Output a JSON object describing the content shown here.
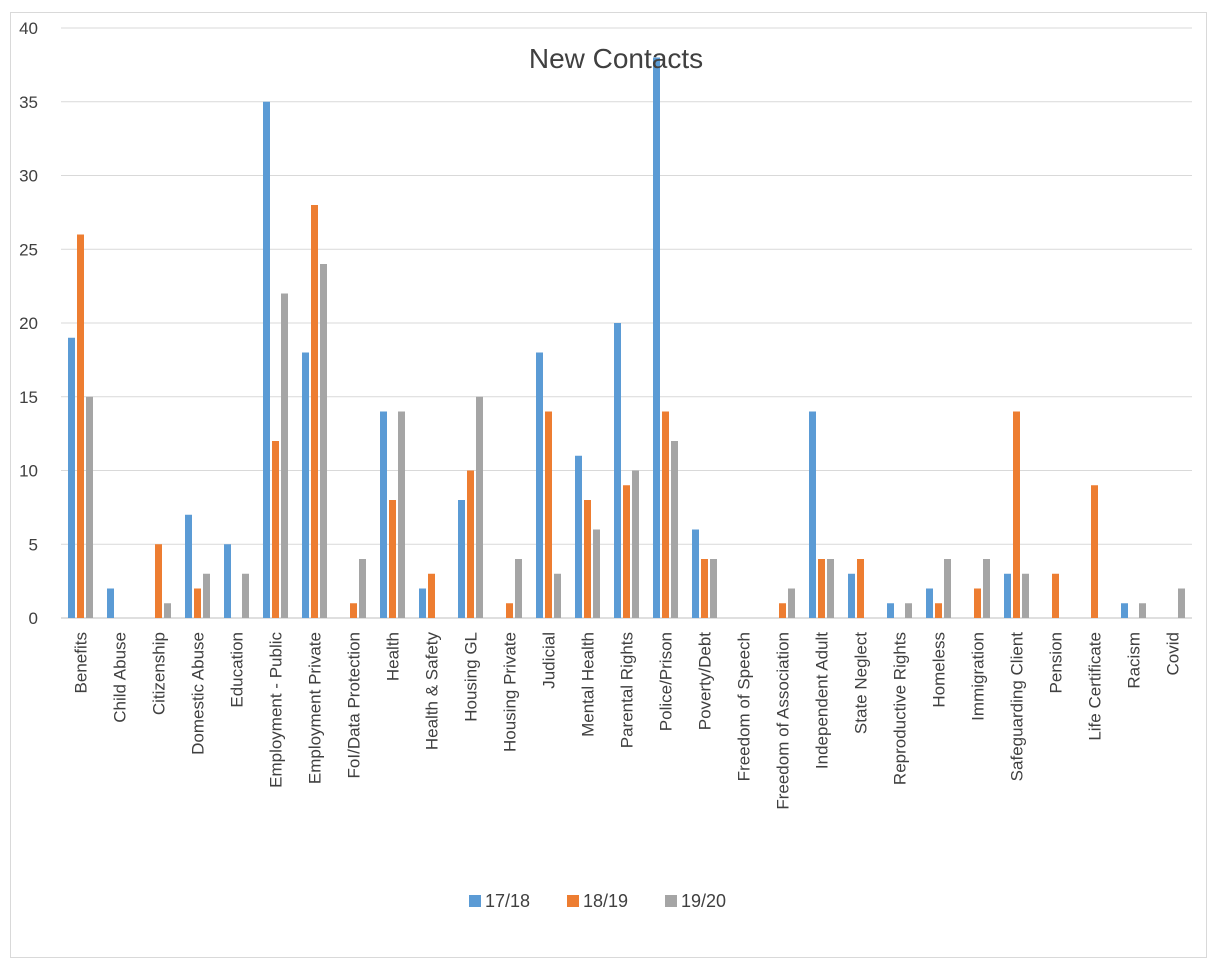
{
  "chart_data": {
    "type": "bar",
    "title": "New Contacts",
    "xlabel": "",
    "ylabel": "",
    "ylim": [
      0,
      40
    ],
    "yticks": [
      0,
      5,
      10,
      15,
      20,
      25,
      30,
      35,
      40
    ],
    "grid": true,
    "legend_position": "bottom",
    "categories": [
      "Benefits",
      "Child Abuse",
      "Citizenship",
      "Domestic Abuse",
      "Education",
      "Employment - Public",
      "Employment Private",
      "FoI/Data Protection",
      "Health",
      "Health & Safety",
      "Housing GL",
      "Housing Private",
      "Judicial",
      "Mental Health",
      "Parental Rights",
      "Police/Prison",
      "Poverty/Debt",
      "Freedom of Speech",
      "Freedom of Association",
      "Independent Adult",
      "State Neglect",
      "Reproductive Rights",
      "Homeless",
      "Immigration",
      "Safeguarding Client",
      "Pension",
      "Life Certificate",
      "Racism",
      "Covid"
    ],
    "series": [
      {
        "name": "17/18",
        "color": "#5b9bd5",
        "values": [
          19,
          2,
          0,
          7,
          5,
          35,
          18,
          0,
          14,
          2,
          8,
          0,
          18,
          11,
          20,
          38,
          6,
          0,
          0,
          14,
          3,
          1,
          2,
          0,
          3,
          0,
          0,
          1,
          0
        ]
      },
      {
        "name": "18/19",
        "color": "#ed7d31",
        "values": [
          26,
          0,
          5,
          2,
          0,
          12,
          28,
          1,
          8,
          3,
          10,
          1,
          14,
          8,
          9,
          14,
          4,
          0,
          1,
          4,
          4,
          0,
          1,
          2,
          14,
          3,
          9,
          0,
          0
        ]
      },
      {
        "name": "19/20",
        "color": "#a5a5a5",
        "values": [
          15,
          0,
          1,
          3,
          3,
          22,
          24,
          4,
          14,
          0,
          15,
          4,
          3,
          6,
          10,
          12,
          4,
          0,
          2,
          4,
          0,
          1,
          4,
          4,
          3,
          0,
          0,
          1,
          2
        ]
      }
    ]
  }
}
